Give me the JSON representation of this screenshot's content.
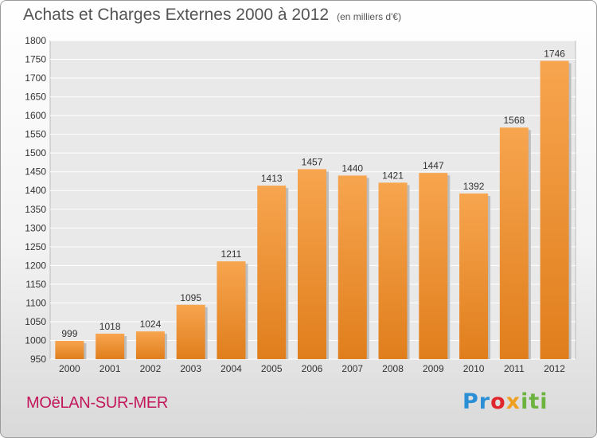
{
  "title": "Achats et Charges Externes 2000 à 2012",
  "unit": "(en milliers d'€)",
  "city": "MOëLAN-SUR-MER",
  "logo": {
    "p1": "Pr",
    "p2": "o",
    "p3": "x",
    "p4": "iti"
  },
  "colors": {
    "bar_top": "#f7a54f",
    "bar_bottom": "#e07e1c",
    "axis_text": "#333333"
  },
  "chart_data": {
    "type": "bar",
    "categories": [
      "2000",
      "2001",
      "2002",
      "2003",
      "2004",
      "2005",
      "2006",
      "2007",
      "2008",
      "2009",
      "2010",
      "2011",
      "2012"
    ],
    "values": [
      999,
      1018,
      1024,
      1095,
      1211,
      1413,
      1457,
      1440,
      1421,
      1447,
      1392,
      1568,
      1746
    ],
    "ylim": [
      950,
      1800
    ],
    "yticks": [
      950,
      1000,
      1050,
      1100,
      1150,
      1200,
      1250,
      1300,
      1350,
      1400,
      1450,
      1500,
      1550,
      1600,
      1650,
      1700,
      1750,
      1800
    ],
    "grid": true,
    "data_labels": true
  }
}
